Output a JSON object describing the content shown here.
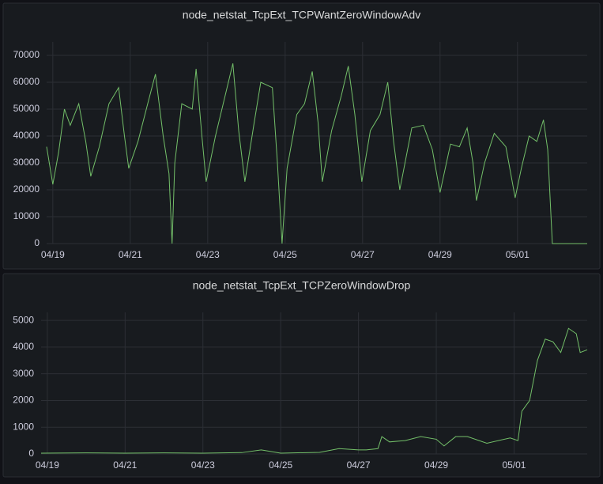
{
  "chart_data": [
    {
      "type": "line",
      "title": "node_netstat_TcpExt_TCPWantZeroWindowAdv",
      "grid": true,
      "xlim": [
        -0.16,
        13.8
      ],
      "ylim": [
        0,
        75000
      ],
      "xticks": [
        {
          "value": 0,
          "label": "04/19"
        },
        {
          "value": 2,
          "label": "04/21"
        },
        {
          "value": 4,
          "label": "04/23"
        },
        {
          "value": 6,
          "label": "04/25"
        },
        {
          "value": 8,
          "label": "04/27"
        },
        {
          "value": 10,
          "label": "04/29"
        },
        {
          "value": 12,
          "label": "05/01"
        }
      ],
      "yticks": [
        0,
        10000,
        20000,
        30000,
        40000,
        50000,
        60000,
        70000
      ],
      "x": [
        -0.16,
        0,
        0.15,
        0.3,
        0.45,
        0.67,
        0.85,
        0.98,
        1.2,
        1.45,
        1.7,
        1.85,
        1.96,
        2.2,
        2.45,
        2.65,
        2.85,
        3.0,
        3.08,
        3.15,
        3.33,
        3.6,
        3.7,
        3.85,
        3.96,
        4.2,
        4.45,
        4.65,
        4.8,
        4.96,
        5.2,
        5.37,
        5.67,
        5.8,
        5.92,
        6.05,
        6.3,
        6.5,
        6.7,
        6.85,
        6.96,
        7.2,
        7.45,
        7.63,
        7.8,
        7.98,
        8.2,
        8.45,
        8.65,
        8.8,
        8.96,
        9.27,
        9.57,
        9.8,
        10.0,
        10.27,
        10.5,
        10.7,
        10.85,
        10.94,
        11.15,
        11.4,
        11.7,
        11.94,
        12.1,
        12.3,
        12.5,
        12.67,
        12.78,
        12.9,
        13.3,
        13.8
      ],
      "series": [
        {
          "name": "node_netstat_TcpExt_TCPWantZeroWindowAdv",
          "color": "#73bf69",
          "values": [
            36000,
            22000,
            34000,
            50000,
            44000,
            52000,
            38000,
            25000,
            36000,
            52000,
            58000,
            40000,
            28000,
            38000,
            52000,
            63000,
            40000,
            26000,
            0,
            30000,
            52000,
            50000,
            65000,
            40000,
            23000,
            40000,
            55000,
            67000,
            42000,
            23000,
            45000,
            60000,
            58000,
            30000,
            0,
            28000,
            48000,
            52000,
            64000,
            45000,
            23000,
            42000,
            55000,
            66000,
            48000,
            23000,
            42000,
            48000,
            60000,
            38000,
            20000,
            43000,
            44000,
            35000,
            19000,
            37000,
            36000,
            43000,
            30000,
            16000,
            30000,
            41000,
            36000,
            17000,
            28000,
            40000,
            38000,
            46000,
            35000,
            0,
            0,
            0
          ]
        }
      ]
    },
    {
      "type": "line",
      "title": "node_netstat_TcpExt_TCPZeroWindowDrop",
      "grid": true,
      "xlim": [
        -0.16,
        13.88
      ],
      "ylim": [
        0,
        5300
      ],
      "xticks": [
        {
          "value": 0,
          "label": "04/19"
        },
        {
          "value": 2,
          "label": "04/21"
        },
        {
          "value": 4,
          "label": "04/23"
        },
        {
          "value": 6,
          "label": "04/25"
        },
        {
          "value": 8,
          "label": "04/27"
        },
        {
          "value": 10,
          "label": "04/29"
        },
        {
          "value": 12,
          "label": "05/01"
        }
      ],
      "yticks": [
        0,
        1000,
        2000,
        3000,
        4000,
        5000
      ],
      "x": [
        -0.16,
        1,
        2,
        3,
        4,
        5,
        5.5,
        6,
        7,
        7.5,
        8,
        8.2,
        8.5,
        8.6,
        8.8,
        9.2,
        9.6,
        10.0,
        10.2,
        10.5,
        10.8,
        11.3,
        11.9,
        12.1,
        12.2,
        12.4,
        12.6,
        12.8,
        13.0,
        13.2,
        13.4,
        13.6,
        13.7,
        13.88
      ],
      "series": [
        {
          "name": "node_netstat_TcpExt_TCPZeroWindowDrop",
          "color": "#73bf69",
          "values": [
            30,
            40,
            30,
            40,
            30,
            50,
            150,
            30,
            60,
            200,
            150,
            150,
            200,
            650,
            450,
            500,
            650,
            550,
            300,
            650,
            650,
            400,
            600,
            500,
            1600,
            2000,
            3500,
            4300,
            4200,
            3800,
            4700,
            4500,
            3800,
            3900
          ]
        }
      ]
    }
  ]
}
